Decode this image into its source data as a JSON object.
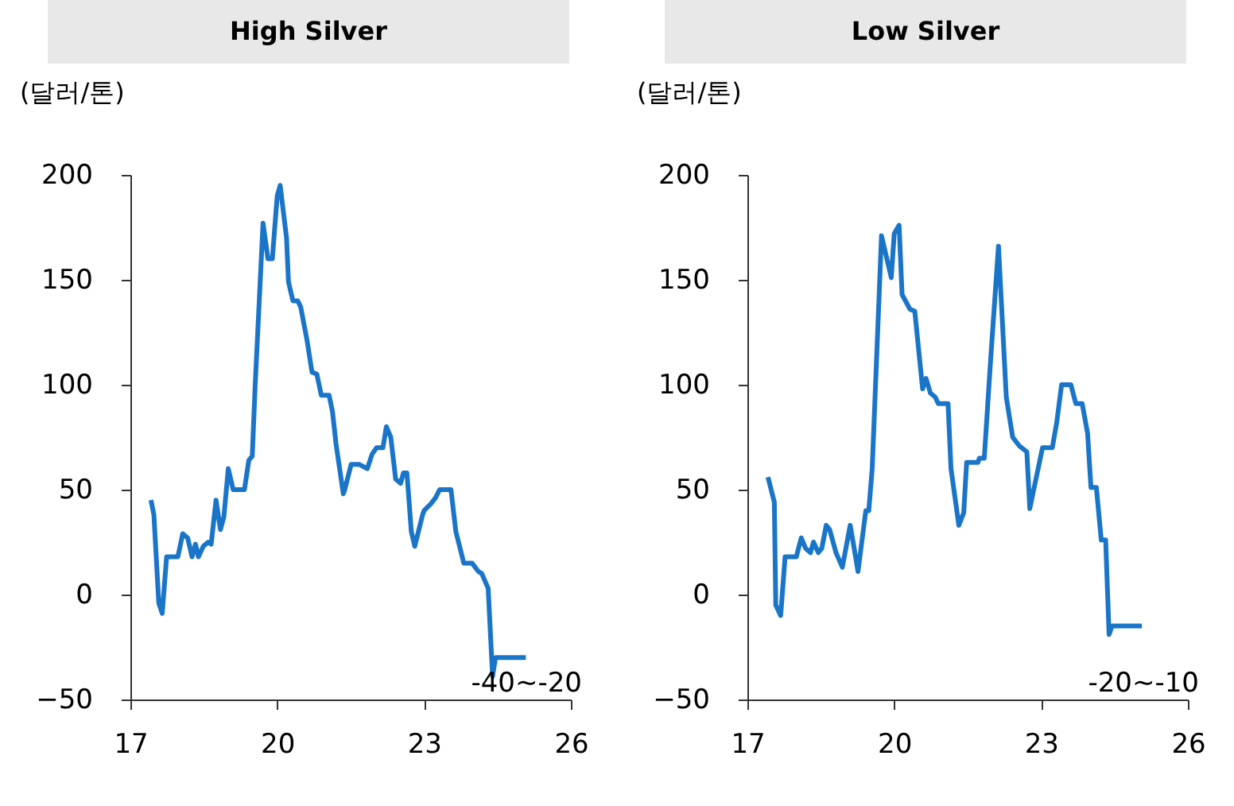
{
  "chart_data": [
    {
      "type": "line",
      "title": "High Silver",
      "ylabel": "(달러/톤)",
      "xlim": [
        17,
        26
      ],
      "xticks": [
        17,
        20,
        23,
        26
      ],
      "ylim": [
        -50,
        200
      ],
      "yticks": [
        -50,
        0,
        50,
        100,
        150,
        200
      ],
      "x": [
        17.42,
        17.48,
        17.58,
        17.65,
        17.74,
        17.97,
        18.07,
        18.17,
        18.26,
        18.33,
        18.39,
        18.49,
        18.59,
        18.65,
        18.75,
        18.84,
        18.91,
        19.0,
        19.1,
        19.33,
        19.42,
        19.49,
        19.55,
        19.71,
        19.81,
        19.9,
        20.0,
        20.06,
        20.19,
        20.23,
        20.32,
        20.42,
        20.48,
        20.61,
        20.71,
        20.81,
        20.9,
        21.06,
        21.13,
        21.2,
        21.35,
        21.38,
        21.51,
        21.68,
        21.84,
        21.94,
        22.03,
        22.16,
        22.23,
        22.32,
        22.42,
        22.52,
        22.58,
        22.65,
        22.74,
        22.81,
        22.97,
        23.0,
        23.13,
        23.23,
        23.32,
        23.55,
        23.65,
        23.78,
        23.81,
        23.98,
        24.11,
        24.18,
        24.31,
        24.4,
        24.46,
        25.08
      ],
      "series": [
        {
          "color": "#1a75c9",
          "values": [
            45,
            38,
            -4,
            -9,
            18,
            18,
            29,
            27,
            18,
            24,
            18,
            23,
            25,
            24,
            45,
            31,
            37,
            60,
            50,
            50,
            64,
            66,
            100,
            177,
            160,
            160,
            190,
            195,
            170,
            149,
            140,
            140,
            137,
            121,
            106,
            105,
            95,
            95,
            87,
            72,
            48,
            50,
            62,
            62,
            60,
            67,
            70,
            70,
            80,
            75,
            55,
            53,
            58,
            58,
            30,
            23,
            38,
            40,
            43,
            46,
            50,
            50,
            30,
            18,
            15,
            15,
            11,
            10,
            3,
            -39,
            -30,
            -30
          ]
        }
      ],
      "annotations": [
        "-40~-20"
      ]
    },
    {
      "type": "line",
      "title": "Low Silver",
      "ylabel": "(달러/톤)",
      "xlim": [
        17,
        26
      ],
      "xticks": [
        17,
        20,
        23,
        26
      ],
      "ylim": [
        -50,
        200
      ],
      "yticks": [
        -50,
        0,
        50,
        100,
        150,
        200
      ],
      "x": [
        17.42,
        17.55,
        17.58,
        17.68,
        17.77,
        18.0,
        18.1,
        18.19,
        18.29,
        18.35,
        18.45,
        18.52,
        18.61,
        18.68,
        18.81,
        18.94,
        19.1,
        19.16,
        19.26,
        19.42,
        19.48,
        19.55,
        19.74,
        19.94,
        20.0,
        20.1,
        20.16,
        20.32,
        20.42,
        20.58,
        20.65,
        20.74,
        20.84,
        20.9,
        21.1,
        21.16,
        21.32,
        21.42,
        21.48,
        21.71,
        21.74,
        21.84,
        21.97,
        22.13,
        22.29,
        22.42,
        22.55,
        22.71,
        22.77,
        23.03,
        23.23,
        23.32,
        23.42,
        23.61,
        23.71,
        23.84,
        23.95,
        24.02,
        24.13,
        24.23,
        24.32,
        24.39,
        24.45,
        25.06
      ],
      "series": [
        {
          "color": "#1a75c9",
          "values": [
            56,
            44,
            -5,
            -10,
            18,
            18,
            27,
            22,
            20,
            25,
            20,
            22,
            33,
            31,
            20,
            13,
            33,
            25,
            11,
            40,
            40,
            60,
            171,
            151,
            172,
            176,
            143,
            136,
            135,
            98,
            103,
            96,
            94,
            91,
            91,
            60,
            33,
            39,
            63,
            63,
            65,
            65,
            112,
            166,
            94,
            75,
            71,
            68,
            41,
            70,
            70,
            82,
            100,
            100,
            91,
            91,
            77,
            51,
            51,
            26,
            26,
            -19,
            -15,
            -15
          ]
        }
      ],
      "annotations": [
        "-20~-10"
      ]
    }
  ]
}
